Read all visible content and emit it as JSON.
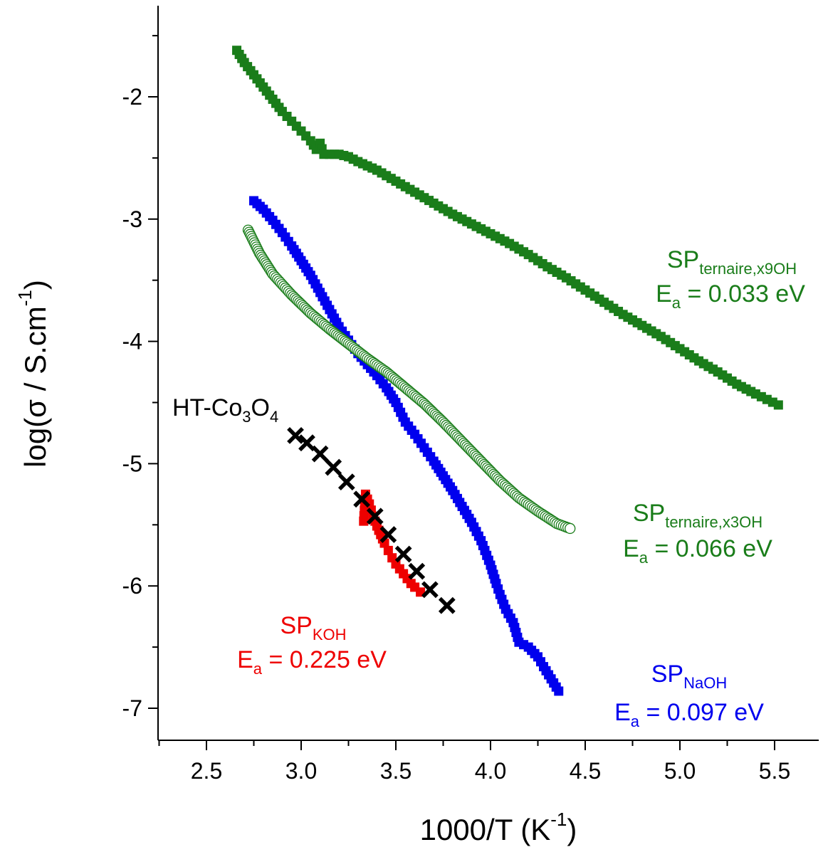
{
  "chart_data": {
    "type": "scatter",
    "xlabel": {
      "main": "1000/T (K",
      "sup": "-1",
      "end": ")"
    },
    "ylabel": {
      "main": "log(σ / S.cm",
      "sup": "-1",
      "end": ")"
    },
    "xlim": [
      2.25,
      5.65
    ],
    "ylim": [
      -7.25,
      -1.25
    ],
    "x_ticks": [
      2.5,
      3.0,
      3.5,
      4.0,
      4.5,
      5.0,
      5.5
    ],
    "x_tick_labels": [
      "2.5",
      "3.0",
      "3.5",
      "4.0",
      "4.5",
      "5.0",
      "5.5"
    ],
    "y_ticks": [
      -7,
      -6,
      -5,
      -4,
      -3,
      -2
    ],
    "y_tick_labels": [
      "-7",
      "-6",
      "-5",
      "-4",
      "-3",
      "-2"
    ],
    "grid": false,
    "colors": {
      "ternaire_x9": "#1a7d1a",
      "ternaire_x3": "#1a7d1a",
      "naoh": "#0000ee",
      "koh": "#ee0000",
      "co3o4": "#000000"
    },
    "series": [
      {
        "key": "ternaire_x9",
        "marker": "filled-square",
        "color": "#1a7d1a",
        "points": [
          [
            2.66,
            -1.62
          ],
          [
            2.7,
            -1.72
          ],
          [
            2.75,
            -1.82
          ],
          [
            2.8,
            -1.92
          ],
          [
            2.85,
            -2.02
          ],
          [
            2.9,
            -2.12
          ],
          [
            2.95,
            -2.2
          ],
          [
            3.0,
            -2.28
          ],
          [
            3.05,
            -2.36
          ],
          [
            3.08,
            -2.43
          ],
          [
            3.1,
            -2.38
          ],
          [
            3.12,
            -2.47
          ],
          [
            3.15,
            -2.47
          ],
          [
            3.2,
            -2.47
          ],
          [
            3.25,
            -2.49
          ],
          [
            3.3,
            -2.53
          ],
          [
            3.4,
            -2.6
          ],
          [
            3.5,
            -2.69
          ],
          [
            3.6,
            -2.78
          ],
          [
            3.7,
            -2.87
          ],
          [
            3.8,
            -2.96
          ],
          [
            3.9,
            -3.04
          ],
          [
            4.0,
            -3.12
          ],
          [
            4.1,
            -3.2
          ],
          [
            4.2,
            -3.29
          ],
          [
            4.3,
            -3.39
          ],
          [
            4.4,
            -3.48
          ],
          [
            4.5,
            -3.58
          ],
          [
            4.6,
            -3.68
          ],
          [
            4.7,
            -3.78
          ],
          [
            4.8,
            -3.87
          ],
          [
            4.9,
            -3.96
          ],
          [
            5.0,
            -4.06
          ],
          [
            5.1,
            -4.16
          ],
          [
            5.2,
            -4.25
          ],
          [
            5.3,
            -4.35
          ],
          [
            5.4,
            -4.43
          ],
          [
            5.52,
            -4.52
          ]
        ]
      },
      {
        "key": "ternaire_x3",
        "marker": "open-circle",
        "color": "#1a7d1a",
        "points": [
          [
            2.72,
            -3.09
          ],
          [
            2.78,
            -3.28
          ],
          [
            2.85,
            -3.45
          ],
          [
            2.95,
            -3.62
          ],
          [
            3.05,
            -3.77
          ],
          [
            3.15,
            -3.9
          ],
          [
            3.25,
            -4.02
          ],
          [
            3.35,
            -4.14
          ],
          [
            3.45,
            -4.25
          ],
          [
            3.55,
            -4.38
          ],
          [
            3.65,
            -4.51
          ],
          [
            3.75,
            -4.66
          ],
          [
            3.85,
            -4.82
          ],
          [
            3.95,
            -4.98
          ],
          [
            4.05,
            -5.14
          ],
          [
            4.15,
            -5.28
          ],
          [
            4.25,
            -5.39
          ],
          [
            4.35,
            -5.49
          ],
          [
            4.42,
            -5.53
          ]
        ]
      },
      {
        "key": "naoh",
        "marker": "filled-square",
        "color": "#0000ee",
        "points": [
          [
            2.75,
            -2.85
          ],
          [
            2.8,
            -2.92
          ],
          [
            2.85,
            -3.01
          ],
          [
            2.9,
            -3.11
          ],
          [
            2.95,
            -3.22
          ],
          [
            3.0,
            -3.34
          ],
          [
            3.05,
            -3.46
          ],
          [
            3.1,
            -3.6
          ],
          [
            3.15,
            -3.74
          ],
          [
            3.2,
            -3.88
          ],
          [
            3.25,
            -3.99
          ],
          [
            3.3,
            -4.1
          ],
          [
            3.35,
            -4.19
          ],
          [
            3.4,
            -4.28
          ],
          [
            3.45,
            -4.38
          ],
          [
            3.5,
            -4.5
          ],
          [
            3.55,
            -4.66
          ],
          [
            3.6,
            -4.76
          ],
          [
            3.65,
            -4.87
          ],
          [
            3.7,
            -4.98
          ],
          [
            3.75,
            -5.1
          ],
          [
            3.8,
            -5.22
          ],
          [
            3.85,
            -5.35
          ],
          [
            3.9,
            -5.48
          ],
          [
            3.95,
            -5.63
          ],
          [
            4.0,
            -5.83
          ],
          [
            4.03,
            -5.98
          ],
          [
            4.05,
            -6.07
          ],
          [
            4.08,
            -6.19
          ],
          [
            4.12,
            -6.3
          ],
          [
            4.15,
            -6.46
          ],
          [
            4.2,
            -6.5
          ],
          [
            4.25,
            -6.58
          ],
          [
            4.28,
            -6.66
          ],
          [
            4.32,
            -6.76
          ],
          [
            4.36,
            -6.86
          ]
        ]
      },
      {
        "key": "koh",
        "marker": "filled-square",
        "color": "#ee0000",
        "points": [
          [
            3.33,
            -5.47
          ],
          [
            3.34,
            -5.25
          ],
          [
            3.36,
            -5.33
          ],
          [
            3.38,
            -5.43
          ],
          [
            3.4,
            -5.51
          ],
          [
            3.42,
            -5.58
          ],
          [
            3.44,
            -5.65
          ],
          [
            3.46,
            -5.71
          ],
          [
            3.48,
            -5.77
          ],
          [
            3.5,
            -5.82
          ],
          [
            3.52,
            -5.86
          ],
          [
            3.54,
            -5.9
          ],
          [
            3.56,
            -5.94
          ],
          [
            3.58,
            -5.98
          ],
          [
            3.6,
            -6.01
          ],
          [
            3.63,
            -6.05
          ]
        ]
      },
      {
        "key": "co3o4",
        "marker": "x",
        "color": "#000000",
        "points": [
          [
            2.97,
            -4.77
          ],
          [
            3.03,
            -4.83
          ],
          [
            3.1,
            -4.92
          ],
          [
            3.17,
            -5.03
          ],
          [
            3.24,
            -5.15
          ],
          [
            3.32,
            -5.29
          ],
          [
            3.39,
            -5.43
          ],
          [
            3.46,
            -5.58
          ],
          [
            3.54,
            -5.74
          ],
          [
            3.61,
            -5.88
          ],
          [
            3.68,
            -6.03
          ],
          [
            3.77,
            -6.16
          ]
        ]
      }
    ],
    "annotations": {
      "ternaire_x9": {
        "main": "SP",
        "sub": "ternaire,x9OH",
        "ea": "E",
        "ea_sub": "a",
        "ea_value": " = 0.033 eV",
        "color": "#1a7d1a"
      },
      "ternaire_x3": {
        "main": "SP",
        "sub": "ternaire,x3OH",
        "ea": "E",
        "ea_sub": "a",
        "ea_value": " = 0.066 eV",
        "color": "#1a7d1a"
      },
      "naoh": {
        "main": "SP",
        "sub": "NaOH",
        "ea": "E",
        "ea_sub": "a",
        "ea_value": " = 0.097 eV",
        "color": "#0000ee"
      },
      "koh": {
        "main": "SP",
        "sub": "KOH",
        "ea": "E",
        "ea_sub": "a",
        "ea_value": " = 0.225 eV",
        "color": "#ee0000"
      },
      "co3o4": {
        "parts": [
          "HT-Co",
          "3",
          "O",
          "4"
        ],
        "color": "#000000"
      }
    }
  }
}
